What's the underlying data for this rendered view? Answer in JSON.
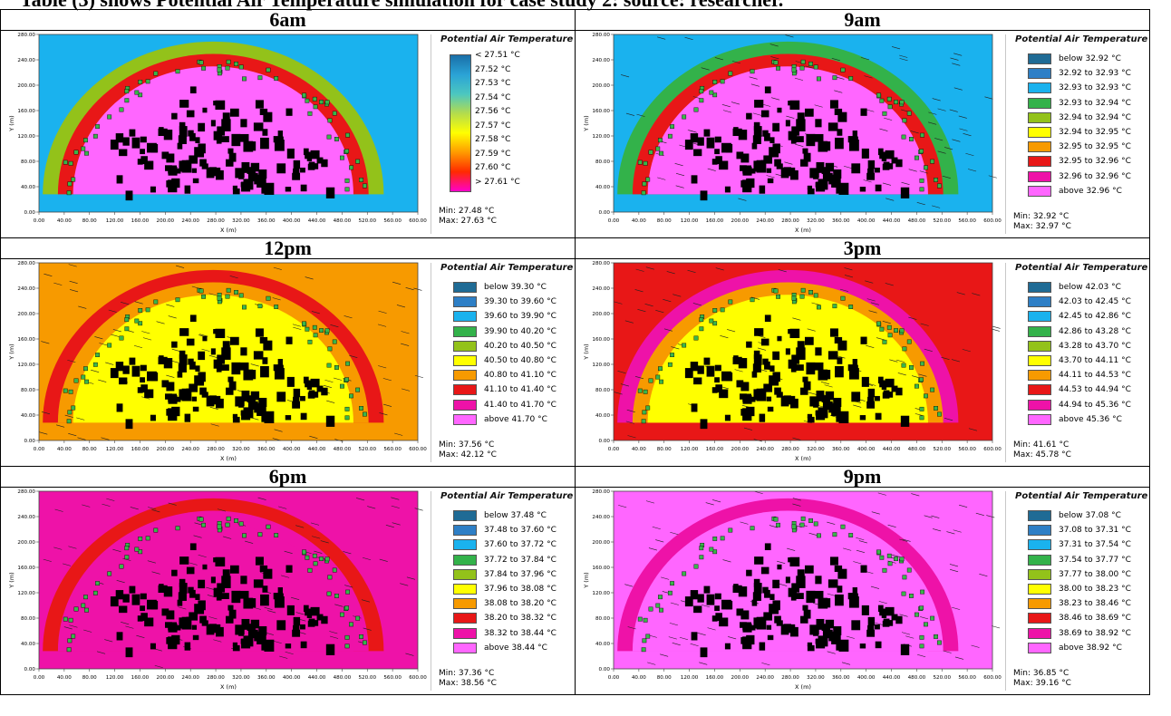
{
  "caption": "Table (3) shows Potential Air Temperature simulation for case study 2: source: researcher.",
  "axis": {
    "x_label": "X (m)",
    "y_label": "Y (m)",
    "x_ticks": [
      "0.00",
      "40.00",
      "80.00",
      "120.00",
      "160.00",
      "200.00",
      "240.00",
      "280.00",
      "320.00",
      "360.00",
      "400.00",
      "440.00",
      "480.00",
      "520.00",
      "560.00",
      "600.00"
    ],
    "y_ticks": [
      "0.00",
      "40.00",
      "80.00",
      "120.00",
      "160.00",
      "200.00",
      "240.00",
      "280.00"
    ]
  },
  "colors": {
    "classes": [
      "#1f6b95",
      "#2e7fc6",
      "#1ab2ee",
      "#33b24a",
      "#93c21a",
      "#ffff00",
      "#f79a00",
      "#e81717",
      "#ee12a8",
      "#ff66ff"
    ],
    "building": "#000000",
    "tree": "#39b54a"
  },
  "panels": [
    {
      "time": "6am",
      "legend_title": "Potential Air Temperature",
      "legend_type": "continuous",
      "classes": [
        "< 27.51 °C",
        "27.52 °C",
        "27.53 °C",
        "27.54 °C",
        "27.56 °C",
        "27.57 °C",
        "27.58 °C",
        "27.59 °C",
        "27.60 °C",
        "> 27.61 °C"
      ],
      "min": "Min: 27.48 °C",
      "max": "Max: 27.63 °C"
    },
    {
      "time": "9am",
      "legend_title": "Potential Air Temperature",
      "legend_type": "classes",
      "classes": [
        "below 32.92 °C",
        "32.92 to 32.93 °C",
        "32.93 to 32.93 °C",
        "32.93 to 32.94 °C",
        "32.94 to 32.94 °C",
        "32.94 to 32.95 °C",
        "32.95 to 32.95 °C",
        "32.95 to 32.96 °C",
        "32.96 to 32.96 °C",
        "above 32.96 °C"
      ],
      "min": "Min: 32.92 °C",
      "max": "Max: 32.97 °C"
    },
    {
      "time": "12pm",
      "legend_title": "Potential Air Temperature",
      "legend_type": "classes",
      "classes": [
        "below 39.30 °C",
        "39.30 to 39.60 °C",
        "39.60 to 39.90 °C",
        "39.90 to 40.20 °C",
        "40.20 to 40.50 °C",
        "40.50 to 40.80 °C",
        "40.80 to 41.10 °C",
        "41.10 to 41.40 °C",
        "41.40 to 41.70 °C",
        "above 41.70 °C"
      ],
      "min": "Min: 37.56 °C",
      "max": "Max: 42.12 °C"
    },
    {
      "time": "3pm",
      "legend_title": "Potential Air Temperature",
      "legend_type": "classes",
      "classes": [
        "below 42.03 °C",
        "42.03 to 42.45 °C",
        "42.45 to 42.86 °C",
        "42.86 to 43.28 °C",
        "43.28 to 43.70 °C",
        "43.70 to 44.11 °C",
        "44.11 to 44.53 °C",
        "44.53 to 44.94 °C",
        "44.94 to 45.36 °C",
        "above 45.36 °C"
      ],
      "min": "Min: 41.61 °C",
      "max": "Max: 45.78 °C"
    },
    {
      "time": "6pm",
      "legend_title": "Potential Air Temperature",
      "legend_type": "classes",
      "classes": [
        "below 37.48 °C",
        "37.48 to 37.60 °C",
        "37.60 to 37.72 °C",
        "37.72 to 37.84 °C",
        "37.84 to 37.96 °C",
        "37.96 to 38.08 °C",
        "38.08 to 38.20 °C",
        "38.20 to 38.32 °C",
        "38.32 to 38.44 °C",
        "above 38.44 °C"
      ],
      "min": "Min: 37.36 °C",
      "max": "Max: 38.56 °C"
    },
    {
      "time": "9pm",
      "legend_title": "Potential Air Temperature",
      "legend_type": "classes",
      "classes": [
        "below 37.08 °C",
        "37.08 to 37.31 °C",
        "37.31 to 37.54 °C",
        "37.54 to 37.77 °C",
        "37.77 to 38.00 °C",
        "38.00 to 38.23 °C",
        "38.23 to 38.46 °C",
        "38.46 to 38.69 °C",
        "38.69 to 38.92 °C",
        "above 38.92 °C"
      ],
      "min": "Min: 36.85 °C",
      "max": "Max: 39.16 °C"
    }
  ]
}
